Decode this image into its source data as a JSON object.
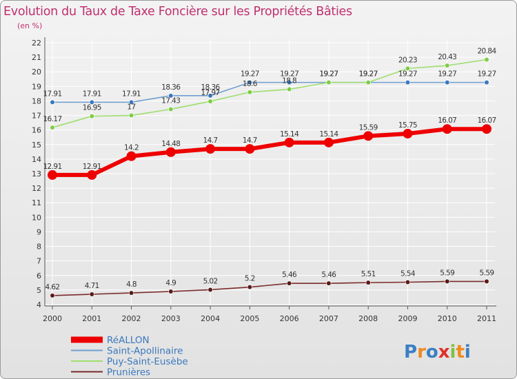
{
  "title": "Evolution du Taux de Taxe Foncière sur les Propriétés Bâties",
  "unit_label": "(en %)",
  "logo_text": "Proxiti",
  "colors": {
    "title": "#c0306f",
    "background_top": "#f3f3f3",
    "background_bottom": "#e2e2e2",
    "grid": "#ffffff",
    "axis": "#555555"
  },
  "chart_data": {
    "type": "line",
    "title": "Evolution du Taux de Taxe Foncière sur les Propriétés Bâties",
    "xlabel": "",
    "ylabel": "(en %)",
    "x": [
      "2000",
      "2001",
      "2002",
      "2003",
      "2004",
      "2005",
      "2006",
      "2007",
      "2008",
      "2009",
      "2010",
      "2011"
    ],
    "ylim": [
      4,
      22
    ],
    "yticks": [
      4,
      5,
      6,
      7,
      8,
      9,
      10,
      11,
      12,
      13,
      14,
      15,
      16,
      17,
      18,
      19,
      20,
      21,
      22
    ],
    "grid": true,
    "legend_position": "bottom-left",
    "series": [
      {
        "name": "RéALLON",
        "color": "#ee0000",
        "marker_color": "#ee0000",
        "emphasis": true,
        "values": [
          12.91,
          12.91,
          14.2,
          14.48,
          14.7,
          14.7,
          15.14,
          15.14,
          15.59,
          15.75,
          16.07,
          16.07
        ],
        "labels": [
          "12.91",
          "12.91",
          "14.2",
          "14.48",
          "14.7",
          "14.7",
          "15.14",
          "15.14",
          "15.59",
          "15.75",
          "16.07",
          "16.07"
        ]
      },
      {
        "name": "Saint-Apollinaire",
        "color": "#6f9fd0",
        "marker_color": "#3a78bd",
        "emphasis": false,
        "values": [
          17.91,
          17.91,
          17.91,
          18.36,
          18.36,
          19.27,
          19.27,
          19.27,
          19.27,
          19.27,
          19.27,
          19.27
        ],
        "labels": [
          "17.91",
          "17.91",
          "17.91",
          "18.36",
          "18.36",
          "19.27",
          "19.27",
          "19.27",
          "19.27",
          "19.27",
          "19.27",
          "19.27"
        ]
      },
      {
        "name": "Puy-Saint-Eusèbe",
        "color": "#9ede6c",
        "marker_color": "#7ccd45",
        "emphasis": false,
        "values": [
          16.17,
          16.95,
          17,
          17.43,
          17.97,
          18.6,
          18.8,
          19.27,
          19.27,
          20.23,
          20.43,
          20.84
        ],
        "labels": [
          "16.17",
          "16.95",
          "17",
          "17.43",
          "17.97",
          "18.6",
          "18.8",
          "19.27",
          "19.27",
          "20.23",
          "20.43",
          "20.84"
        ]
      },
      {
        "name": "Prunières",
        "color": "#7a2a2a",
        "marker_color": "#5a1a1a",
        "emphasis": false,
        "values": [
          4.62,
          4.71,
          4.8,
          4.9,
          5.02,
          5.2,
          5.46,
          5.46,
          5.51,
          5.54,
          5.59,
          5.59
        ],
        "labels": [
          "4.62",
          "4.71",
          "4.8",
          "4.9",
          "5.02",
          "5.2",
          "5.46",
          "5.46",
          "5.51",
          "5.54",
          "5.59",
          "5.59"
        ]
      }
    ]
  }
}
